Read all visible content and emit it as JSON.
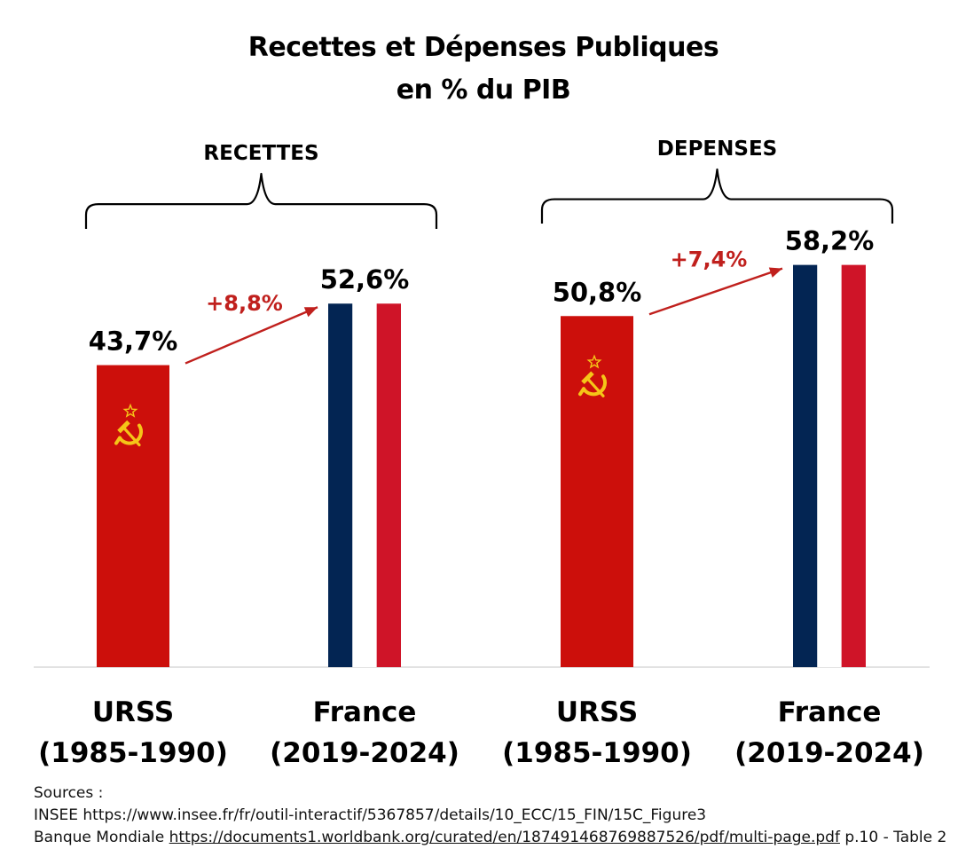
{
  "header": {
    "title_line1": "Recettes et Dépenses Publiques",
    "title_line2": "en % du PIB"
  },
  "colors": {
    "ussr_red": "#cc0f0b",
    "france_blue": "#032553",
    "france_red": "#cf1428",
    "arrow_red": "#c0201d",
    "emblem_gold": "#f5c518",
    "axis_line": "#d9d9d9"
  },
  "chart_data": {
    "type": "bar",
    "groups": [
      {
        "label": "RECETTES",
        "bars": [
          {
            "category": "URSS",
            "period": "(1985-1990)",
            "value": 43.7,
            "value_label": "43,7%",
            "style": "ussr-flag"
          },
          {
            "category": "France",
            "period": "(2019-2024)",
            "value": 52.6,
            "value_label": "52,6%",
            "style": "french-flag"
          }
        ],
        "delta_label": "+8,8%"
      },
      {
        "label": "DEPENSES",
        "bars": [
          {
            "category": "URSS",
            "period": "(1985-1990)",
            "value": 50.8,
            "value_label": "50,8%",
            "style": "ussr-flag"
          },
          {
            "category": "France",
            "period": "(2019-2024)",
            "value": 58.2,
            "value_label": "58,2%",
            "style": "french-flag"
          }
        ],
        "delta_label": "+7,4%"
      }
    ],
    "unit": "% du PIB",
    "grid": false,
    "legend": "none"
  },
  "sources": {
    "heading": "Sources :",
    "line1": "INSEE https://www.insee.fr/fr/outil-interactif/5367857/details/10_ECC/15_FIN/15C_Figure3",
    "line2_prefix": "Banque Mondiale ",
    "line2_link": "https://documents1.worldbank.org/curated/en/187491468769887526/pdf/multi-page.pdf",
    "line2_suffix": " p.10 - Table 2"
  }
}
